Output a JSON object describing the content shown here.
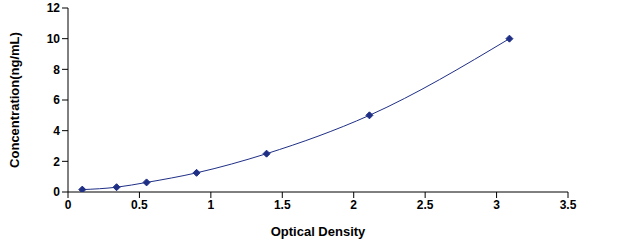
{
  "chart_data": {
    "type": "line",
    "x_label": "Optical Density",
    "y_label": "Concentration(ng/mL)",
    "x": [
      0.1,
      0.34,
      0.55,
      0.9,
      1.39,
      2.11,
      3.09
    ],
    "values": [
      0.156,
      0.312,
      0.625,
      1.25,
      2.5,
      5,
      10
    ],
    "color": "#1f2f86",
    "marker": "diamond",
    "line_style": "solid",
    "xlim": [
      0,
      3.5
    ],
    "xticks": [
      0,
      0.5,
      1,
      1.5,
      2,
      2.5,
      3,
      3.5
    ],
    "ylim": [
      0,
      12
    ],
    "yticks": [
      0,
      2,
      4,
      6,
      8,
      10,
      12
    ],
    "grid": false
  }
}
